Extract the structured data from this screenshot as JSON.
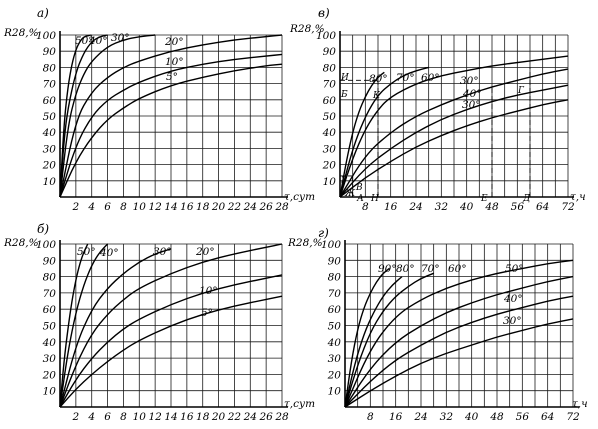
{
  "chart_data": [
    {
      "id": "a",
      "type": "line",
      "panel_label": "а)",
      "ylabel": "R28,%",
      "xlabel": "τ,сут",
      "xlim": [
        0,
        28
      ],
      "ylim": [
        0,
        100
      ],
      "x_ticks": [
        2,
        4,
        6,
        8,
        10,
        12,
        14,
        16,
        18,
        20,
        22,
        24,
        26,
        28
      ],
      "x_tick_labels": [
        "2",
        "4",
        "6",
        "8",
        "10",
        "12",
        "14",
        "16",
        "18",
        "20",
        "22",
        "24",
        "26",
        "28"
      ],
      "y_ticks": [
        10,
        20,
        30,
        40,
        50,
        60,
        70,
        80,
        90,
        100
      ],
      "y_tick_labels": [
        "10",
        "20",
        "30",
        "40",
        "50",
        "60",
        "70",
        "80",
        "90",
        "100"
      ],
      "series": [
        {
          "name": "50°",
          "x": [
            0,
            0.5,
            1,
            1.5,
            2,
            2.5,
            3,
            4
          ],
          "y": [
            0,
            45,
            68,
            82,
            91,
            96,
            99,
            100
          ]
        },
        {
          "name": "40°",
          "x": [
            0,
            0.5,
            1,
            2,
            3,
            4,
            5,
            6
          ],
          "y": [
            0,
            35,
            55,
            77,
            89,
            96,
            99,
            100
          ]
        },
        {
          "name": "30°",
          "x": [
            0,
            1,
            2,
            3,
            4,
            6,
            8,
            10,
            12
          ],
          "y": [
            0,
            44,
            64,
            76,
            84,
            93,
            97,
            99,
            100
          ]
        },
        {
          "name": "20°",
          "x": [
            0,
            2,
            4,
            6,
            8,
            10,
            14,
            18,
            22,
            26,
            28
          ],
          "y": [
            0,
            48,
            65,
            74,
            80,
            84,
            90,
            94,
            97,
            99,
            100
          ]
        },
        {
          "name": "10°",
          "x": [
            0,
            2,
            4,
            6,
            8,
            10,
            14,
            18,
            22,
            26,
            28
          ],
          "y": [
            0,
            32,
            50,
            60,
            66,
            71,
            78,
            82,
            85,
            87,
            88
          ]
        },
        {
          "name": "5°",
          "x": [
            0,
            2,
            4,
            6,
            8,
            10,
            14,
            18,
            22,
            26,
            28
          ],
          "y": [
            0,
            22,
            37,
            48,
            55,
            61,
            69,
            74,
            78,
            81,
            82
          ]
        }
      ],
      "curve_labels": [
        "50°",
        "40°",
        "30°",
        "20°",
        "10°",
        "5°"
      ]
    },
    {
      "id": "v",
      "type": "line",
      "panel_label": "в)",
      "ylabel": "R28,%",
      "xlabel": "τ,ч",
      "xlim": [
        0,
        72
      ],
      "ylim": [
        0,
        100
      ],
      "x_ticks": [
        8,
        16,
        24,
        32,
        40,
        48,
        56,
        64,
        72
      ],
      "x_tick_labels": [
        "8",
        "16",
        "24",
        "32",
        "40",
        "48",
        "56",
        "64",
        "72"
      ],
      "y_ticks": [
        10,
        20,
        30,
        40,
        50,
        60,
        70,
        80,
        90,
        100
      ],
      "y_tick_labels": [
        "10",
        "20",
        "30",
        "40",
        "50",
        "60",
        "70",
        "80",
        "90",
        "100"
      ],
      "series": [
        {
          "name": "80°",
          "x": [
            0,
            2,
            4,
            6,
            8,
            10,
            12,
            14
          ],
          "y": [
            0,
            22,
            40,
            53,
            62,
            69,
            74,
            77
          ]
        },
        {
          "name": "70°",
          "x": [
            0,
            4,
            8,
            12,
            16,
            20,
            24,
            28
          ],
          "y": [
            0,
            30,
            50,
            63,
            70,
            75,
            78,
            80
          ]
        },
        {
          "name": "60°",
          "x": [
            0,
            4,
            8,
            12,
            16,
            24,
            32,
            40,
            48,
            56,
            64,
            72
          ],
          "y": [
            0,
            24,
            42,
            54,
            62,
            70,
            75,
            78,
            81,
            83,
            85,
            87
          ]
        },
        {
          "name": "30°",
          "x": [
            0,
            8,
            16,
            24,
            32,
            40,
            48,
            56,
            64,
            72
          ],
          "y": [
            0,
            26,
            40,
            50,
            57,
            63,
            68,
            72,
            76,
            79
          ]
        },
        {
          "name": "40°",
          "x": [
            0,
            8,
            16,
            24,
            32,
            40,
            48,
            56,
            64,
            72
          ],
          "y": [
            0,
            18,
            30,
            40,
            48,
            54,
            59,
            63,
            66,
            69
          ]
        },
        {
          "name": "30°",
          "x": [
            0,
            8,
            16,
            24,
            32,
            40,
            48,
            56,
            64,
            72
          ],
          "y": [
            0,
            12,
            22,
            31,
            38,
            44,
            49,
            53,
            57,
            60
          ]
        }
      ],
      "curve_labels": [
        "80°",
        "70°",
        "60°",
        "30°",
        "40°",
        "30°"
      ],
      "point_labels": [
        "И",
        "Б",
        "К",
        "З",
        "Г",
        "В",
        "Ж",
        "А",
        "Н",
        "Е",
        "Д"
      ]
    },
    {
      "id": "b",
      "type": "line",
      "panel_label": "б)",
      "ylabel": "R28,%",
      "xlabel": "τ,сут",
      "xlim": [
        0,
        28
      ],
      "ylim": [
        0,
        100
      ],
      "x_ticks": [
        2,
        4,
        6,
        8,
        10,
        12,
        14,
        16,
        18,
        20,
        22,
        24,
        26,
        28
      ],
      "x_tick_labels": [
        "2",
        "4",
        "6",
        "8",
        "10",
        "12",
        "14",
        "16",
        "18",
        "20",
        "22",
        "24",
        "26",
        "28"
      ],
      "y_ticks": [
        10,
        20,
        30,
        40,
        50,
        60,
        70,
        80,
        90,
        100
      ],
      "y_tick_labels": [
        "10",
        "20",
        "30",
        "40",
        "50",
        "60",
        "70",
        "80",
        "90",
        "100"
      ],
      "series": [
        {
          "name": "50°",
          "x": [
            0,
            0.5,
            1,
            1.5,
            2,
            2.5,
            3,
            3.5
          ],
          "y": [
            0,
            28,
            48,
            65,
            78,
            88,
            95,
            100
          ]
        },
        {
          "name": "40°",
          "x": [
            0,
            1,
            2,
            3,
            4,
            5,
            6
          ],
          "y": [
            0,
            34,
            58,
            75,
            87,
            95,
            100
          ]
        },
        {
          "name": "30°",
          "x": [
            0,
            2,
            4,
            6,
            8,
            10,
            12,
            14
          ],
          "y": [
            0,
            38,
            60,
            73,
            82,
            89,
            94,
            97
          ]
        },
        {
          "name": "20°",
          "x": [
            0,
            2,
            4,
            6,
            8,
            10,
            14,
            18,
            22,
            26,
            28
          ],
          "y": [
            0,
            26,
            45,
            57,
            66,
            73,
            82,
            89,
            94,
            98,
            100
          ]
        },
        {
          "name": "10°",
          "x": [
            0,
            2,
            4,
            6,
            8,
            10,
            14,
            18,
            22,
            26,
            28
          ],
          "y": [
            0,
            17,
            30,
            40,
            48,
            54,
            63,
            70,
            75,
            79,
            81
          ]
        },
        {
          "name": "5°",
          "x": [
            0,
            2,
            4,
            6,
            8,
            10,
            14,
            18,
            22,
            26,
            28
          ],
          "y": [
            0,
            11,
            20,
            28,
            35,
            41,
            50,
            57,
            62,
            66,
            68
          ]
        }
      ],
      "curve_labels": [
        "50°",
        "40°",
        "30°",
        "20°",
        "10°",
        "5°"
      ]
    },
    {
      "id": "g",
      "type": "line",
      "panel_label": "г)",
      "ylabel": "R28,%",
      "xlabel": "τ,ч",
      "xlim": [
        0,
        72
      ],
      "ylim": [
        0,
        100
      ],
      "x_ticks": [
        8,
        16,
        24,
        32,
        40,
        48,
        56,
        64,
        72
      ],
      "x_tick_labels": [
        "8",
        "16",
        "24",
        "32",
        "40",
        "48",
        "56",
        "64",
        "72"
      ],
      "y_ticks": [
        10,
        20,
        30,
        40,
        50,
        60,
        70,
        80,
        90,
        100
      ],
      "y_tick_labels": [
        "10",
        "20",
        "30",
        "40",
        "50",
        "60",
        "70",
        "80",
        "90",
        "100"
      ],
      "series": [
        {
          "name": "90°",
          "x": [
            0,
            2,
            4,
            6,
            8,
            10,
            12,
            14
          ],
          "y": [
            0,
            28,
            48,
            61,
            70,
            77,
            82,
            85
          ]
        },
        {
          "name": "80°",
          "x": [
            0,
            3,
            6,
            9,
            12,
            15,
            18
          ],
          "y": [
            0,
            26,
            45,
            58,
            68,
            75,
            80
          ]
        },
        {
          "name": "70°",
          "x": [
            0,
            4,
            8,
            12,
            16,
            20,
            24,
            28
          ],
          "y": [
            0,
            26,
            46,
            59,
            68,
            74,
            79,
            82
          ]
        },
        {
          "name": "60°",
          "x": [
            0,
            8,
            16,
            24,
            32,
            40,
            48,
            56,
            64,
            72
          ],
          "y": [
            0,
            36,
            56,
            66,
            73,
            78,
            82,
            85,
            88,
            90
          ]
        },
        {
          "name": "50°",
          "x": [
            0,
            8,
            16,
            24,
            32,
            40,
            48,
            56,
            64,
            72
          ],
          "y": [
            0,
            24,
            40,
            50,
            58,
            64,
            69,
            73,
            77,
            80
          ]
        },
        {
          "name": "40°",
          "x": [
            0,
            8,
            16,
            24,
            32,
            40,
            48,
            56,
            64,
            72
          ],
          "y": [
            0,
            16,
            29,
            38,
            46,
            52,
            57,
            61,
            65,
            68
          ]
        },
        {
          "name": "30°",
          "x": [
            0,
            8,
            16,
            24,
            32,
            40,
            48,
            56,
            64,
            72
          ],
          "y": [
            0,
            10,
            19,
            27,
            33,
            38,
            43,
            47,
            51,
            54
          ]
        }
      ],
      "curve_labels": [
        "90°",
        "80°",
        "70°",
        "60°",
        "50°",
        "40°",
        "30°"
      ]
    }
  ]
}
